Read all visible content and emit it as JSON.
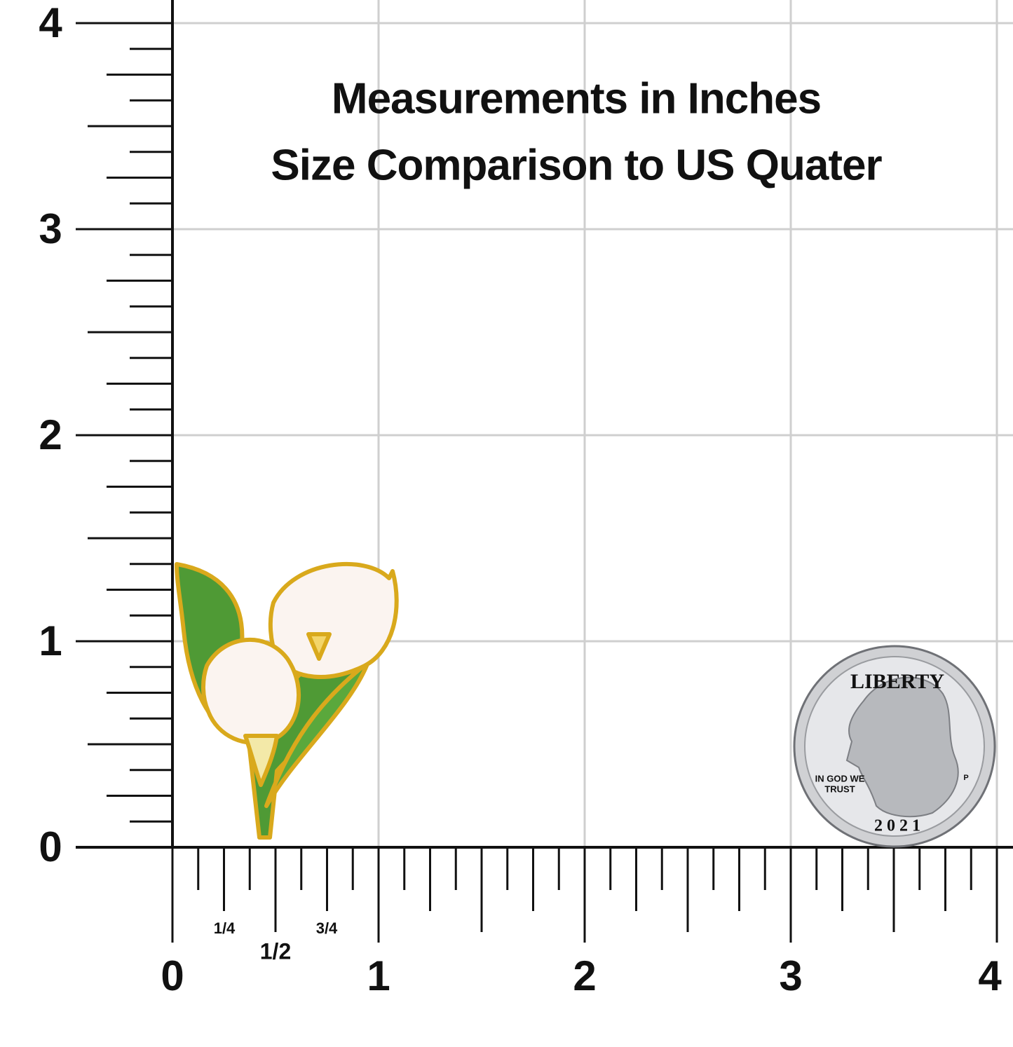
{
  "title": [
    "Measurements in Inches",
    "Size Comparison to US Quater"
  ],
  "x_axis": {
    "labels": [
      "0",
      "1",
      "2",
      "3",
      "4"
    ],
    "fractions": [
      "1/4",
      "1/2",
      "3/4"
    ]
  },
  "y_axis": {
    "labels": [
      "0",
      "1",
      "2",
      "3",
      "4"
    ]
  },
  "coin": {
    "top": "LIBERTY",
    "motto": [
      "IN GOD WE",
      "TRUST"
    ],
    "year": "2021",
    "mint": "P"
  }
}
